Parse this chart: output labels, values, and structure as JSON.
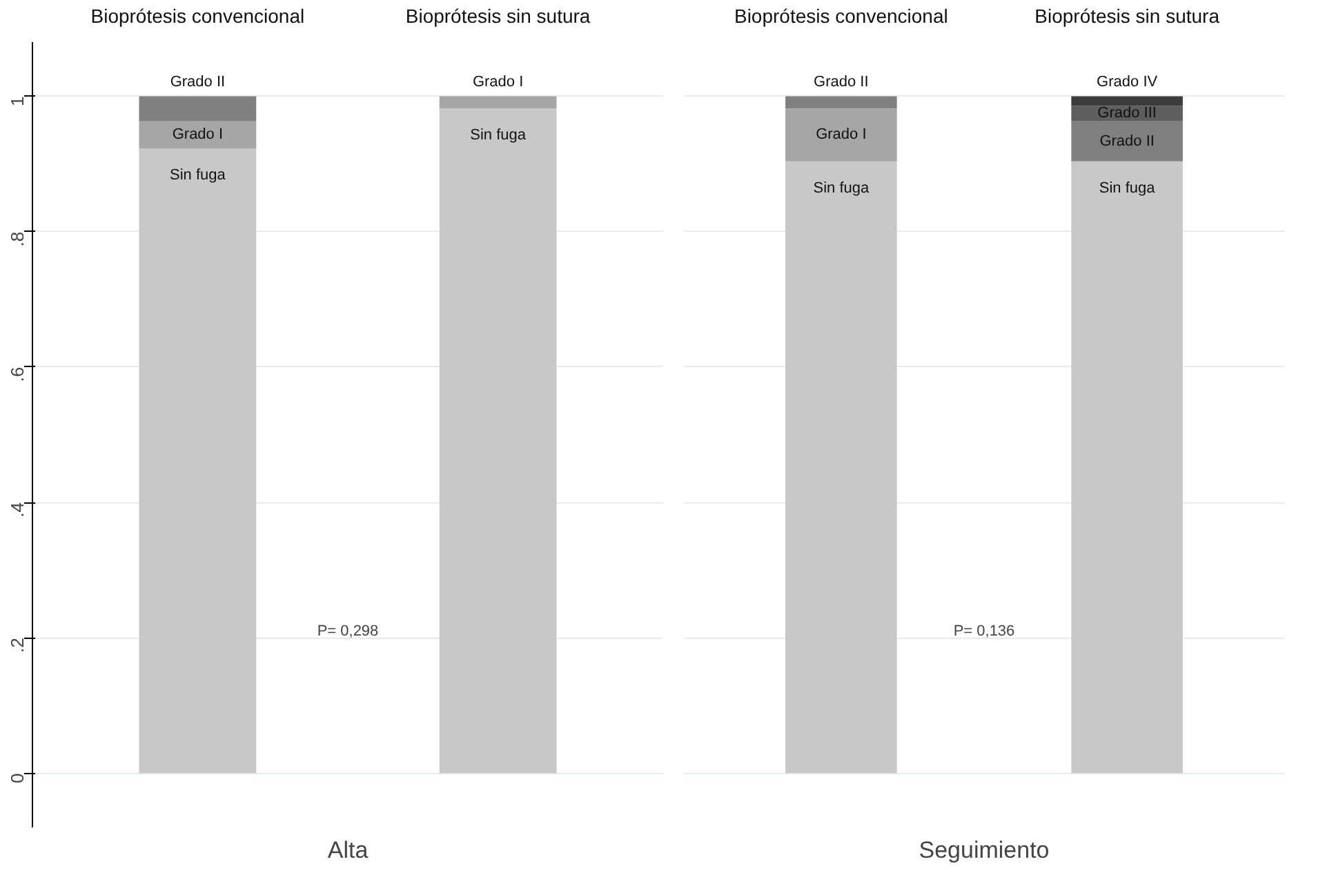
{
  "chart_data": [
    {
      "type": "bar",
      "stacked": true,
      "xlabel": "Alta",
      "categories": [
        "Bioprótesis convencional",
        "Bioprótesis sin sutura"
      ],
      "ylim": [
        -0.08,
        1.08
      ],
      "yticks": [
        {
          "value": 0,
          "label": "0"
        },
        {
          "value": 0.2,
          "label": ".2"
        },
        {
          "value": 0.4,
          "label": ".4"
        },
        {
          "value": 0.6,
          "label": ".6"
        },
        {
          "value": 0.8,
          "label": ".8"
        },
        {
          "value": 1,
          "label": "1"
        }
      ],
      "grid": "y",
      "annotations": [
        "P= 0,298"
      ],
      "series": [
        {
          "name": "Sin fuga",
          "color": "#c8c8c8",
          "values": [
            0.923,
            0.982
          ]
        },
        {
          "name": "Grado I",
          "color": "#a6a6a6",
          "values": [
            0.04,
            0.018
          ]
        },
        {
          "name": "Grado II",
          "color": "#808080",
          "values": [
            0.037,
            null
          ]
        }
      ]
    },
    {
      "type": "bar",
      "stacked": true,
      "xlabel": "Seguimiento",
      "categories": [
        "Bioprótesis convencional",
        "Bioprótesis sin sutura"
      ],
      "yticks": [
        0,
        0.2,
        0.4,
        0.6,
        0.8,
        1
      ],
      "tick_labels": false,
      "grid": "y",
      "annotations": [
        "P= 0,136"
      ],
      "series": [
        {
          "name": "Sin fuga",
          "color": "#c8c8c8",
          "values": [
            0.904,
            0.904
          ]
        },
        {
          "name": "Grado I",
          "color": "#a6a6a6",
          "values": [
            0.078,
            null
          ]
        },
        {
          "name": "Grado II",
          "color": "#808080",
          "values": [
            0.018,
            0.059
          ]
        },
        {
          "name": "Grado III",
          "color": "#5e5e5e",
          "values": [
            null,
            0.023
          ]
        },
        {
          "name": "Grado IV",
          "color": "#3c3c3c",
          "values": [
            null,
            0.014
          ]
        }
      ]
    }
  ]
}
